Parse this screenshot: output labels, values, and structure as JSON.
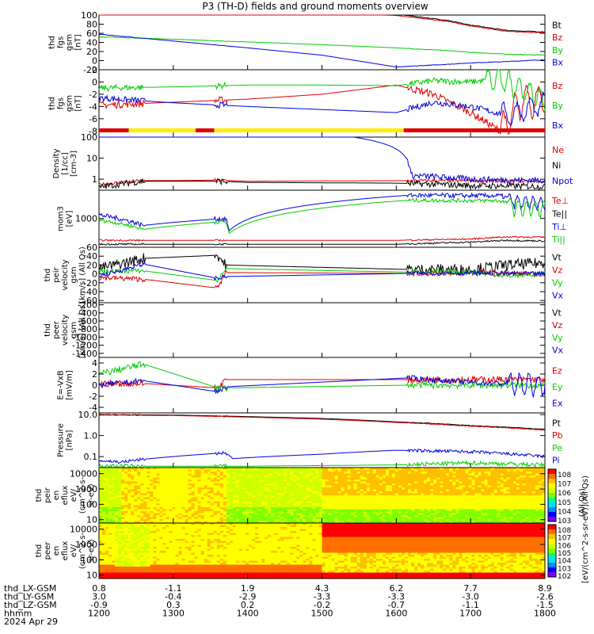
{
  "title": "P3 (TH-D) fields and ground moments overview",
  "colors": {
    "black": "#000000",
    "red": "#e00000",
    "green": "#00cc00",
    "blue": "#0000dd",
    "yellow": "#ffee00",
    "cbar": [
      "#8000ff",
      "#0000ff",
      "#00c0ff",
      "#00ff80",
      "#80ff00",
      "#ffff00",
      "#ff8000",
      "#ff0000"
    ]
  },
  "bottom": {
    "rows": [
      {
        "label": "thd_LX-GSM",
        "values": [
          "0.8",
          "-1.1",
          "1.9",
          "4.3",
          "6.2",
          "7.7",
          "8.9"
        ]
      },
      {
        "label": "thd_LY-GSM",
        "values": [
          "3.0",
          "-0.4",
          "-2.9",
          "-3.3",
          "-3.3",
          "-3.0",
          "-2.6"
        ]
      },
      {
        "label": "thd_LZ-GSM",
        "values": [
          "-0.9",
          "0.3",
          "0.2",
          "-0.2",
          "-0.7",
          "-1.1",
          "-1.5"
        ]
      },
      {
        "label": "hhmm",
        "values": [
          "1200",
          "1300",
          "1400",
          "1500",
          "1600",
          "1700",
          "1800"
        ]
      }
    ],
    "date": "2024 Apr 29"
  },
  "chart_data": [
    {
      "type": "line",
      "id": "fgs",
      "ylabel": [
        "thd",
        "fgs",
        "gsm",
        "[nT]"
      ],
      "ylim": [
        -20,
        100
      ],
      "yticks": [
        100,
        80,
        60,
        40,
        20,
        0,
        -20
      ],
      "legend": [
        {
          "name": "Bt",
          "color": "black"
        },
        {
          "name": "Bz",
          "color": "red"
        },
        {
          "name": "By",
          "color": "green"
        },
        {
          "name": "Bx",
          "color": "blue"
        }
      ]
    },
    {
      "type": "line",
      "id": "fgs_dsl",
      "ylabel": [
        "thd",
        "fgs",
        "gsm",
        "[nT]"
      ],
      "ylim": [
        -9,
        2
      ],
      "yticks": [
        2,
        0,
        -2,
        -4,
        -6,
        -8
      ],
      "legend": [
        {
          "name": "Bz",
          "color": "red"
        },
        {
          "name": "By",
          "color": "green"
        },
        {
          "name": "Bx",
          "color": "blue"
        }
      ]
    },
    {
      "type": "line",
      "id": "density",
      "ylabel": [
        "Density",
        "[1/cc]",
        "[cm-3]"
      ],
      "yscale": "log",
      "ylim": [
        0.3,
        100
      ],
      "yticks": [
        100,
        10,
        1
      ],
      "legend": [
        {
          "name": "Ne",
          "color": "red"
        },
        {
          "name": "Ni",
          "color": "black"
        },
        {
          "name": "Npot",
          "color": "blue"
        }
      ]
    },
    {
      "type": "line",
      "id": "temp",
      "ylabel": [
        "mom3",
        "[eV]"
      ],
      "yscale": "log",
      "ylim": [
        120,
        8000
      ],
      "yticks": [
        1000
      ],
      "legend": [
        {
          "name": "Te⊥",
          "color": "red"
        },
        {
          "name": "Te||",
          "color": "black"
        },
        {
          "name": "Ti⊥",
          "color": "blue"
        },
        {
          "name": "Ti||",
          "color": "green"
        }
      ]
    },
    {
      "type": "line",
      "id": "vi",
      "ylabel": [
        "thd",
        "peir",
        "velocity",
        "gsm",
        "[km/s] (All Qs)"
      ],
      "ylim": [
        -65,
        60
      ],
      "yticks": [
        60,
        40,
        20,
        0,
        -20,
        -40,
        -60
      ],
      "legend": [
        {
          "name": "Vt",
          "color": "black"
        },
        {
          "name": "Vz",
          "color": "red"
        },
        {
          "name": "Vy",
          "color": "green"
        },
        {
          "name": "Vx",
          "color": "blue"
        }
      ]
    },
    {
      "type": "line",
      "id": "ve",
      "ylabel": [
        "thd",
        "peer",
        "velocity",
        "gsm",
        "[km/s] (All Qs)"
      ],
      "ylim": [
        -1500,
        -150
      ],
      "yticks": [
        -200,
        -400,
        -600,
        -800,
        -1000,
        -1200,
        -1400
      ],
      "legend": [
        {
          "name": "Vt",
          "color": "black"
        },
        {
          "name": "Vz",
          "color": "red"
        },
        {
          "name": "Vy",
          "color": "green"
        },
        {
          "name": "Vx",
          "color": "blue"
        }
      ]
    },
    {
      "type": "line",
      "id": "exb",
      "ylabel": [
        "E=-VxB",
        "[mV/m]"
      ],
      "ylim": [
        -5,
        5
      ],
      "yticks": [
        4,
        2,
        0,
        -2,
        -4
      ],
      "legend": [
        {
          "name": "Ez",
          "color": "red"
        },
        {
          "name": "Ey",
          "color": "green"
        },
        {
          "name": "Ex",
          "color": "blue"
        }
      ]
    },
    {
      "type": "line",
      "id": "pressure",
      "ylabel": [
        "Pressure",
        "[nPa]"
      ],
      "yscale": "log",
      "ylim": [
        0.03,
        12
      ],
      "yticks": [
        "10.0",
        "1.0",
        "0.1"
      ],
      "legend": [
        {
          "name": "Pt",
          "color": "black"
        },
        {
          "name": "Pb",
          "color": "red"
        },
        {
          "name": "Pe",
          "color": "green"
        },
        {
          "name": "Pi",
          "color": "blue"
        }
      ],
      "legend_note": "(All Qs)"
    },
    {
      "type": "heatmap",
      "id": "peir_en",
      "ylabel": [
        "thd",
        "peir",
        "en",
        "eflux",
        "eV/",
        "(cm^2-s-",
        "sr-eV)"
      ],
      "yscale": "log",
      "ylim": [
        6,
        25000
      ],
      "yticks": [
        "10000",
        "1000",
        "100",
        "10"
      ],
      "zticks": [
        "10^8",
        "10^7",
        "10^6",
        "10^5",
        "10^4",
        "10^3"
      ]
    },
    {
      "type": "heatmap",
      "id": "peer_en",
      "ylabel": [
        "thd",
        "peer",
        "en",
        "eflux",
        "eV/",
        "(cm^2-s-",
        "sr-eV)"
      ],
      "yscale": "log",
      "ylim": [
        6,
        25000
      ],
      "yticks": [
        "10000",
        "1000",
        "100",
        "10"
      ],
      "zticks": [
        "10^8",
        "10^7",
        "10^6",
        "10^5",
        "10^4",
        "10^3",
        "10^2"
      ]
    },
    {
      "type": "colorbar",
      "label": "[eV/(cm^2-s-sr-eV)]",
      "note": "(All Qs)"
    }
  ]
}
